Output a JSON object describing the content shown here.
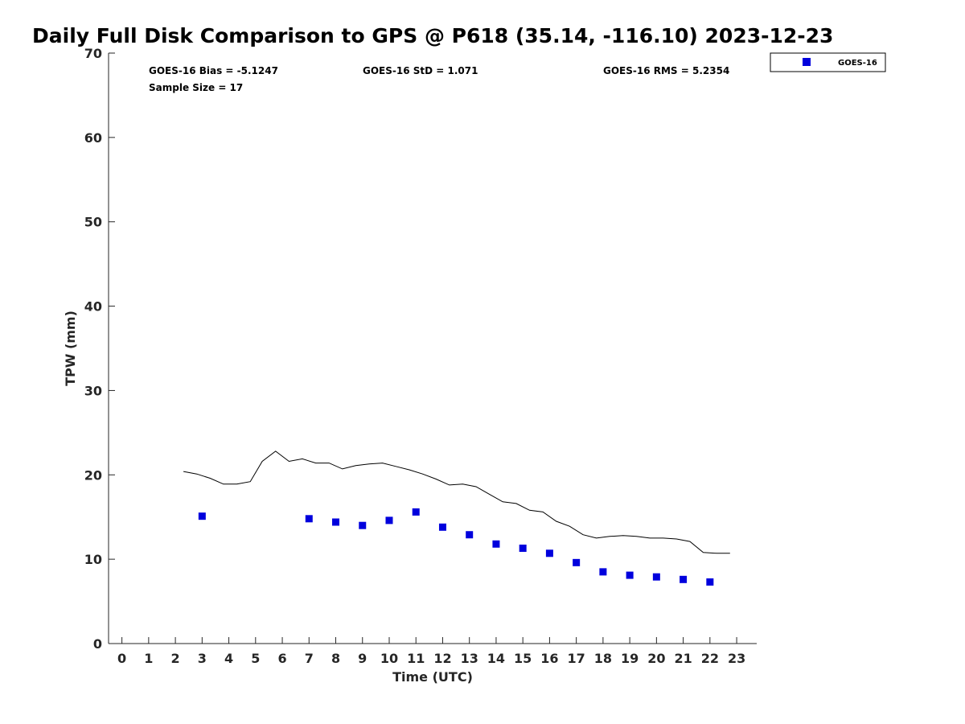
{
  "chart_data": {
    "type": "scatter",
    "title": "Daily Full Disk Comparison to GPS @ P618 (35.14, -116.10) 2023-12-23",
    "xlabel": "Time (UTC)",
    "ylabel": "TPW (mm)",
    "xlim": [
      -0.5,
      23.75
    ],
    "ylim": [
      0,
      70
    ],
    "x_ticks": [
      0,
      1,
      2,
      3,
      4,
      5,
      6,
      7,
      8,
      9,
      10,
      11,
      12,
      13,
      14,
      15,
      16,
      17,
      18,
      19,
      20,
      21,
      22,
      23
    ],
    "y_ticks": [
      0,
      10,
      20,
      30,
      40,
      50,
      60,
      70
    ],
    "grid": false,
    "legend_position": "top-right",
    "stats": {
      "bias": "GOES-16 Bias = -5.1247",
      "std": "GOES-16 StD = 1.071",
      "rms": "GOES-16 RMS = 5.2354",
      "sample": "Sample Size = 17"
    },
    "series": [
      {
        "name": "GOES-16",
        "marker": "square",
        "color": "#0000dd",
        "x": [
          3,
          7,
          8,
          9,
          10,
          11,
          12,
          13,
          14,
          15,
          16,
          17,
          18,
          19,
          20,
          21,
          22
        ],
        "y": [
          15.1,
          14.8,
          14.4,
          14.0,
          14.6,
          15.6,
          13.8,
          12.9,
          11.8,
          11.3,
          10.7,
          9.6,
          8.5,
          8.1,
          7.9,
          7.6,
          7.3
        ]
      },
      {
        "line": true,
        "color": "#000000",
        "x": [
          2.3,
          2.8,
          3.3,
          3.8,
          4.3,
          4.8,
          5.25,
          5.75,
          6.25,
          6.75,
          7.25,
          7.75,
          8.25,
          8.75,
          9.25,
          9.75,
          10.25,
          10.75,
          11.25,
          11.75,
          12.25,
          12.75,
          13.25,
          13.75,
          14.25,
          14.75,
          15.25,
          15.75,
          16.25,
          16.75,
          17.25,
          17.75,
          18.25,
          18.75,
          19.25,
          19.75,
          20.25,
          20.75,
          21.25,
          21.75,
          22.25,
          22.75
        ],
        "y": [
          20.4,
          20.1,
          19.6,
          18.9,
          18.9,
          19.2,
          21.6,
          22.8,
          21.6,
          21.9,
          21.4,
          21.4,
          20.7,
          21.1,
          21.3,
          21.4,
          21.0,
          20.6,
          20.1,
          19.5,
          18.8,
          18.9,
          18.6,
          17.7,
          16.8,
          16.6,
          15.8,
          15.6,
          14.5,
          13.9,
          12.9,
          12.5,
          12.7,
          12.8,
          12.7,
          12.5,
          12.5,
          12.4,
          12.1,
          10.8,
          10.7,
          10.7
        ]
      }
    ]
  }
}
